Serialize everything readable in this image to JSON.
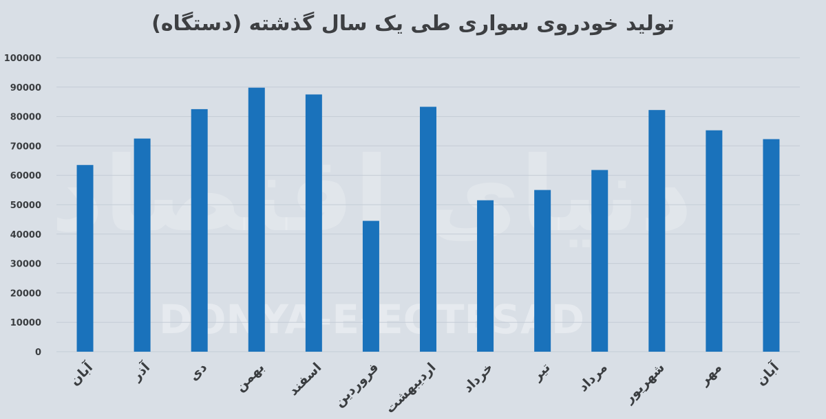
{
  "chart_data": {
    "type": "bar",
    "title": "تولید خودروی سواری طی یک سال گذشته (دستگاه)",
    "watermark_latin": "DONYA-E-EQTESAD",
    "watermark_persian": "دنیای اقتصاد",
    "categories": [
      "آبان",
      "آذر",
      "دی",
      "بهمن",
      "اسفند",
      "فروردین",
      "اردیبهشت",
      "خرداد",
      "تیر",
      "مرداد",
      "شهریور",
      "مهر",
      "آبان"
    ],
    "values": [
      63500,
      72500,
      82500,
      89800,
      87500,
      44500,
      83300,
      51500,
      55000,
      61800,
      82200,
      75300,
      72300
    ],
    "ylim": [
      0,
      100000
    ],
    "yticks": [
      "0",
      "10000",
      "20000",
      "30000",
      "40000",
      "50000",
      "60000",
      "70000",
      "80000",
      "90000",
      "100000"
    ],
    "grid": true,
    "colors": {
      "background": "#d9dfe6",
      "bar": "#1a72bb",
      "grid": "#c4ccd5",
      "text": "#3a3d40",
      "title": "#3d3f42"
    }
  }
}
